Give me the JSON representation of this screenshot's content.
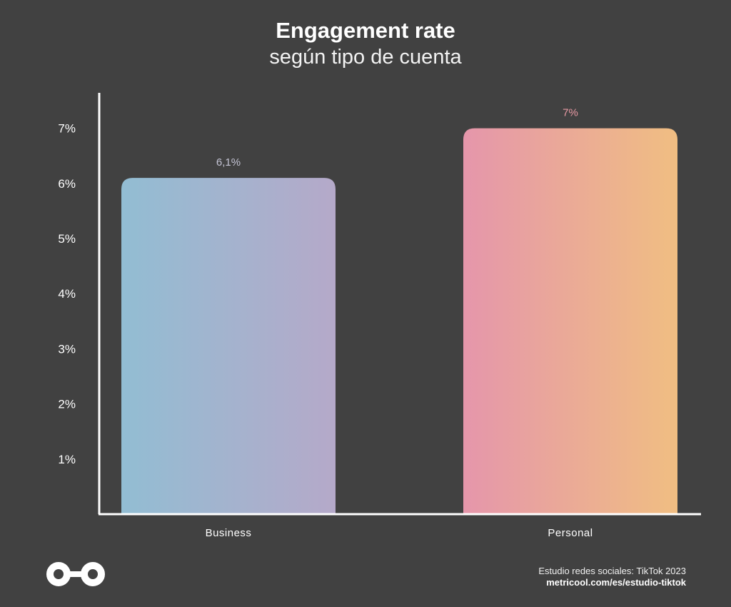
{
  "colors": {
    "background": "#414141",
    "axis": "#ffffff",
    "business_gradient": [
      "#92bdd3",
      "#b5a9c9"
    ],
    "personal_gradient": [
      "#e596ab",
      "#f0be82"
    ],
    "business_label": "#c4c4d4",
    "personal_label": "#e99aa4"
  },
  "logo": {
    "icon": "metricool-infinity-logo-icon"
  },
  "footer": {
    "source": "Estudio redes sociales: TikTok 2023",
    "url": "metricool.com/es/estudio-tiktok"
  },
  "chart_data": {
    "type": "bar",
    "title": "Engagement rate",
    "subtitle": "según tipo de cuenta",
    "categories": [
      "Business",
      "Personal"
    ],
    "values": [
      6.1,
      7
    ],
    "value_labels": [
      "6,1%",
      "7%"
    ],
    "yticks": [
      "1%",
      "2%",
      "3%",
      "4%",
      "5%",
      "6%",
      "7%"
    ],
    "ylim": [
      0,
      7.6
    ],
    "xlabel": "",
    "ylabel": "",
    "grid": false
  }
}
